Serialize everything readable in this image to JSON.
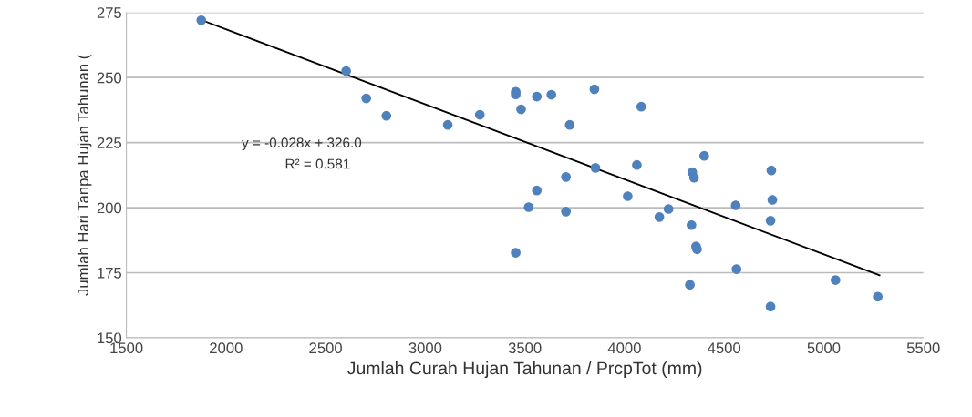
{
  "chart_data": {
    "type": "scatter",
    "xlabel": "Jumlah Curah Hujan Tahunan / PrcpTot (mm)",
    "ylabel": "Jumlah Hari Tanpa Hujan Tahunan (",
    "xlim": [
      1500,
      5500
    ],
    "xticks": [
      1500,
      2000,
      2500,
      3000,
      3500,
      4000,
      4500,
      5000,
      5500
    ],
    "ylim": [
      150,
      275
    ],
    "yticks": [
      150,
      175,
      200,
      225,
      250,
      275
    ],
    "grid": "y",
    "annotations": [
      "y = -0.028x + 326.0",
      "R² = 0.581"
    ],
    "series": [
      {
        "marker": "circle",
        "color": "#4f81bd",
        "x": [
          1876,
          2603,
          2704,
          2805,
          3113,
          3274,
          3454,
          3454,
          3481,
          3560,
          3633,
          3849,
          3725,
          4084,
          3854,
          3706,
          3560,
          3519,
          3706,
          3454,
          4062,
          4016,
          4175,
          4221,
          4340,
          4349,
          4400,
          4336,
          4359,
          4364,
          4328,
          4558,
          4562,
          4737,
          4742,
          4733,
          4733,
          5059,
          5271
        ],
        "values": [
          272,
          252.5,
          242,
          235.3,
          231.8,
          235.7,
          244.5,
          243.5,
          237.8,
          242.7,
          243.4,
          245.5,
          231.8,
          238.8,
          215.3,
          211.8,
          206.6,
          200.2,
          198.5,
          182.7,
          216.4,
          204.4,
          196.4,
          199.5,
          213.6,
          211.5,
          219.9,
          193.3,
          185.1,
          184,
          170.4,
          200.9,
          176.4,
          214.3,
          203,
          195,
          162,
          172.2,
          165.8
        ]
      },
      {
        "type": "line",
        "marker": "none",
        "color": "#000000",
        "x": [
          1880,
          5280
        ],
        "values": [
          272,
          174
        ]
      }
    ]
  }
}
